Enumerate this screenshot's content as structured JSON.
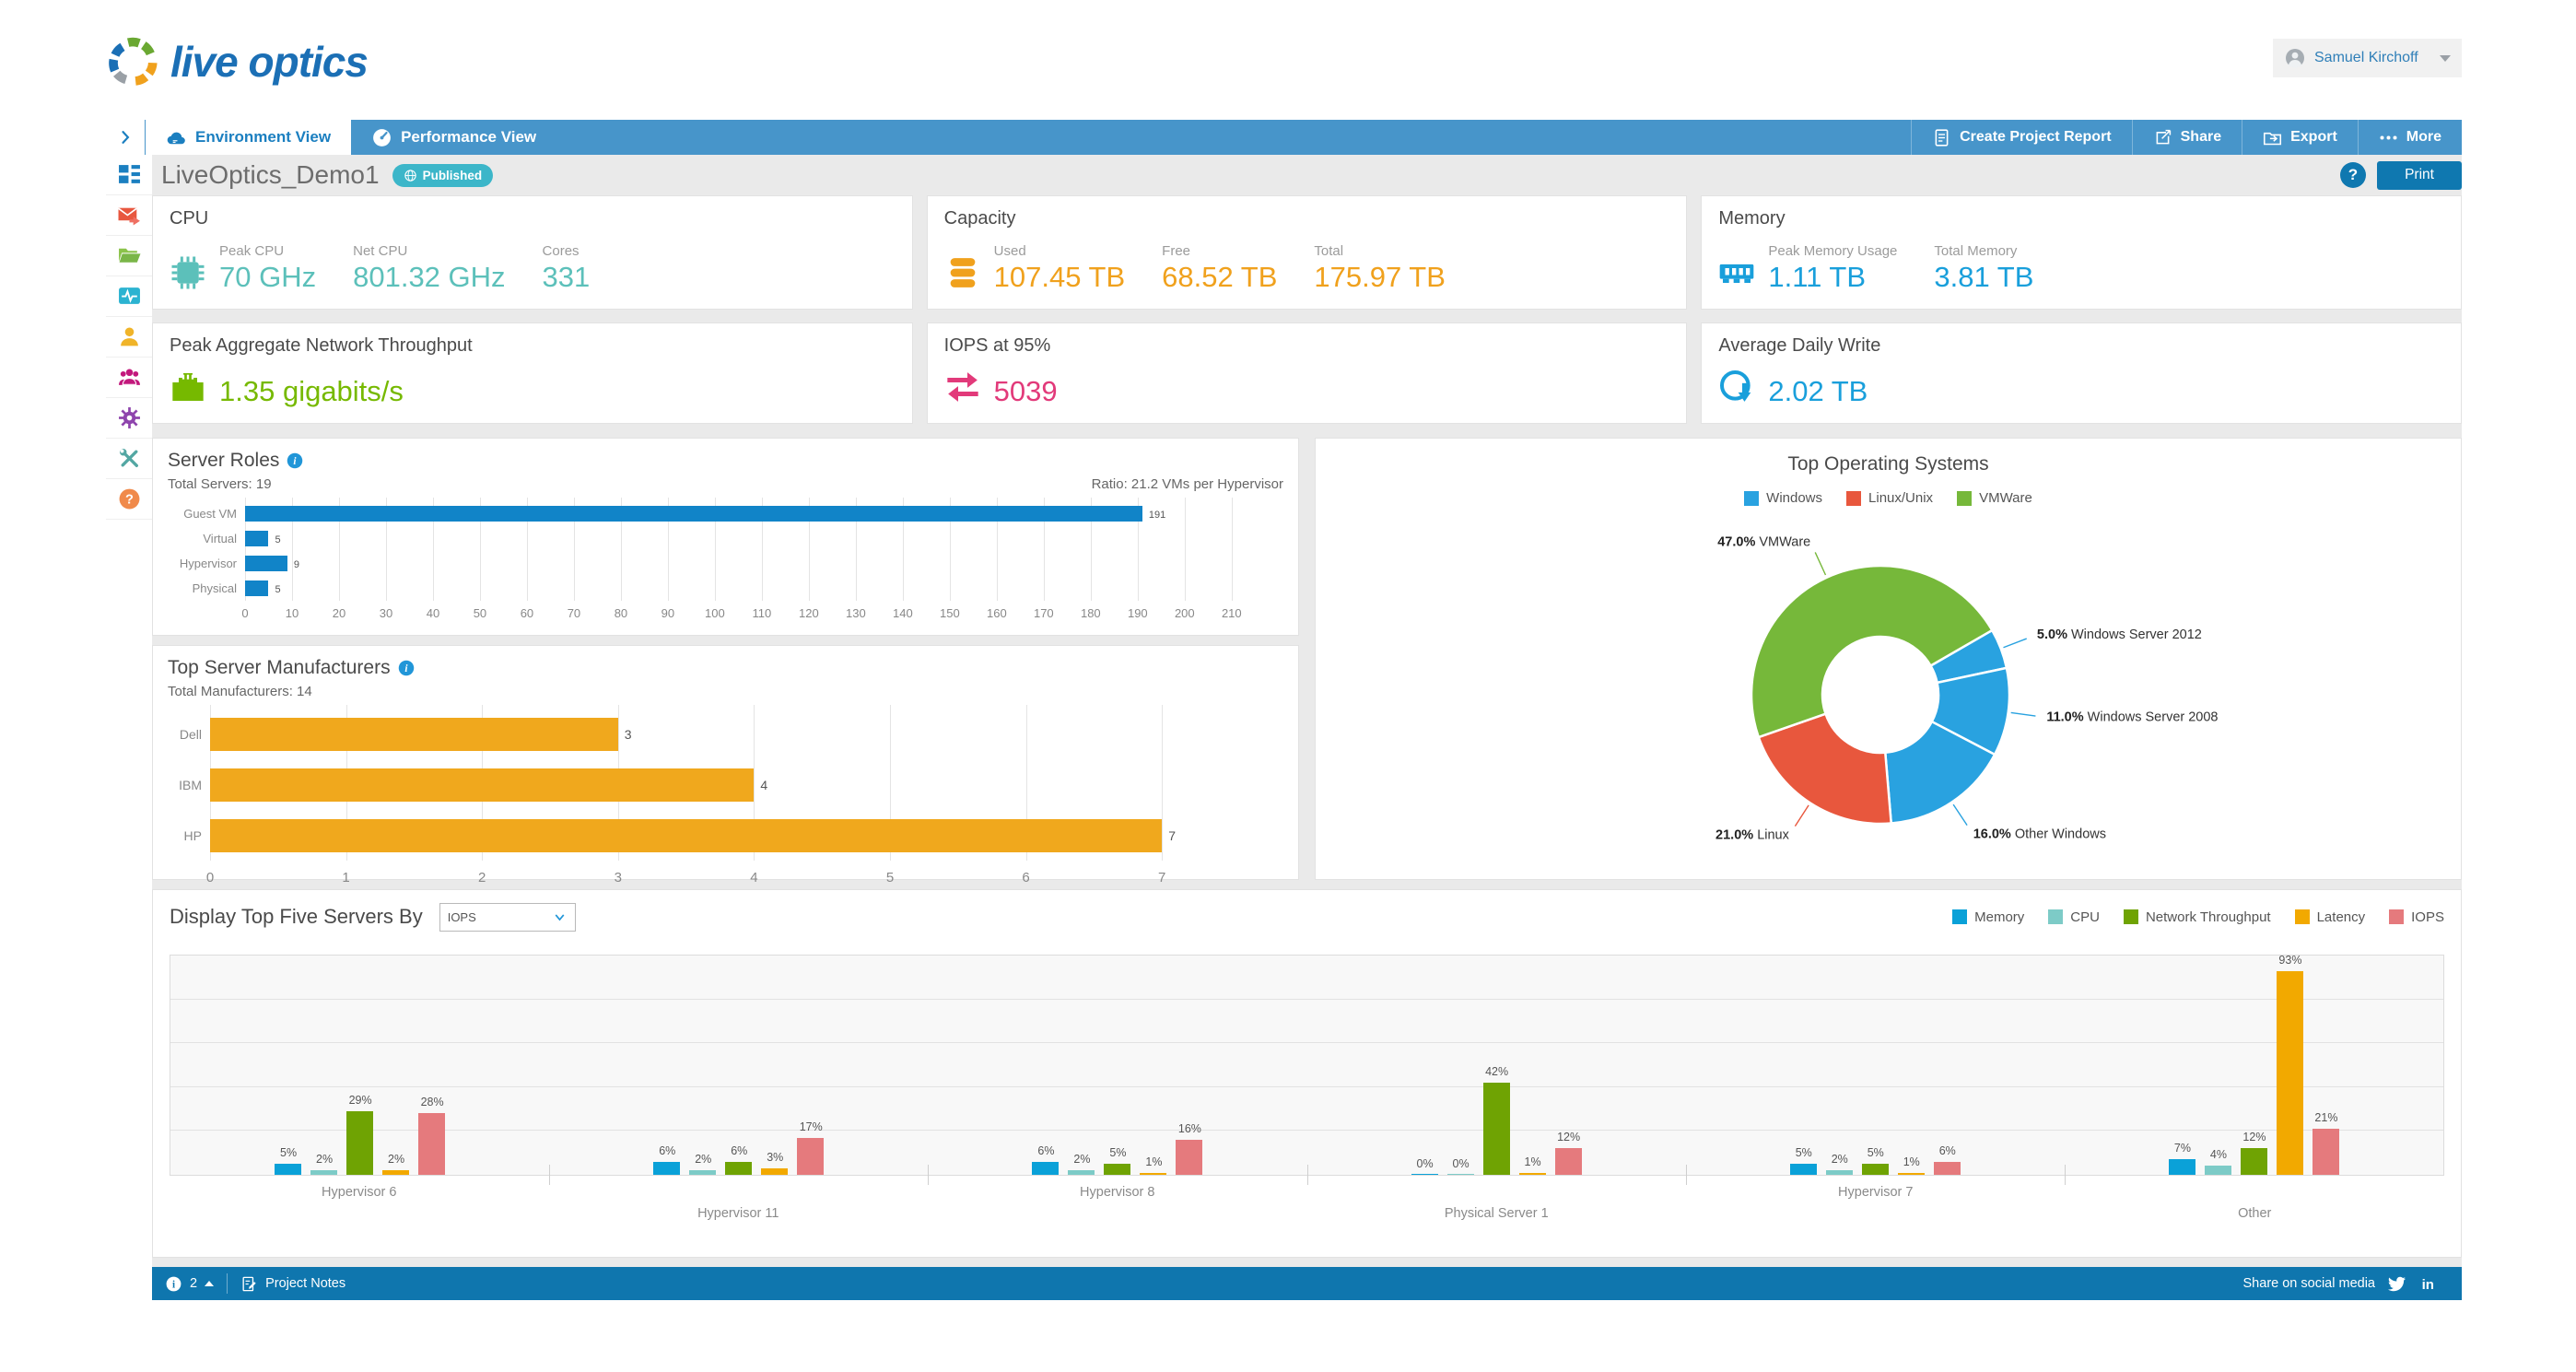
{
  "header": {
    "logo": "live optics",
    "user": "Samuel Kirchoff"
  },
  "tabs": [
    {
      "label": "Environment View",
      "icon": "cloud",
      "active": true
    },
    {
      "label": "Performance View",
      "icon": "gauge",
      "active": false
    }
  ],
  "toolbar": [
    {
      "label": "Create Project Report",
      "icon": "report"
    },
    {
      "label": "Share",
      "icon": "share"
    },
    {
      "label": "Export",
      "icon": "export"
    },
    {
      "label": "More",
      "icon": "more"
    }
  ],
  "title_row": {
    "title": "LiveOptics_Demo1",
    "badge": "Published",
    "help": "?",
    "print": "Print"
  },
  "sidebar": [
    "dashboard",
    "mail",
    "folder",
    "monitor",
    "user",
    "team",
    "settings",
    "tools",
    "helpq"
  ],
  "kpis": [
    {
      "title": "CPU",
      "icon": "chip",
      "color": "#5cc0ba",
      "metrics": [
        [
          "Peak CPU",
          "70 GHz"
        ],
        [
          "Net CPU",
          "801.32 GHz"
        ],
        [
          "Cores",
          "331"
        ]
      ]
    },
    {
      "title": "Capacity",
      "icon": "db",
      "color": "#f0a11d",
      "metrics": [
        [
          "Used",
          "107.45 TB"
        ],
        [
          "Free",
          "68.52 TB"
        ],
        [
          "Total",
          "175.97 TB"
        ]
      ]
    },
    {
      "title": "Memory",
      "icon": "memory",
      "color": "#199fdb",
      "metrics": [
        [
          "Peak Memory Usage",
          "1.11 TB"
        ],
        [
          "Total Memory",
          "3.81 TB"
        ]
      ]
    },
    {
      "title": "Peak Aggregate Network Throughput",
      "icon": "ethernet",
      "color": "#76b900",
      "metrics": [
        [
          "",
          "1.35 gigabits/s"
        ]
      ]
    },
    {
      "title": "IOPS at 95%",
      "icon": "syncarrows",
      "color": "#e23a7a",
      "metrics": [
        [
          "",
          "5039"
        ]
      ]
    },
    {
      "title": "Average Daily Write",
      "icon": "diskwrite",
      "color": "#199fdb",
      "metrics": [
        [
          "",
          "2.02 TB"
        ]
      ]
    }
  ],
  "chart_data": [
    {
      "id": "server_roles",
      "type": "bar",
      "orientation": "horizontal",
      "title": "Server Roles",
      "subtitle": "Total Servers: 19",
      "annotation": "Ratio: 21.2 VMs per Hypervisor",
      "categories": [
        "Guest VM",
        "Virtual",
        "Hypervisor",
        "Physical"
      ],
      "values": [
        191,
        5,
        9,
        5
      ],
      "xlim": [
        0,
        210
      ],
      "tick_step": 10,
      "axis_max": 212,
      "bar_color": "#1184c8",
      "grid": true
    },
    {
      "id": "top_manufacturers",
      "type": "bar",
      "orientation": "horizontal",
      "title": "Top Server Manufacturers",
      "subtitle": "Total Manufacturers: 14",
      "categories": [
        "Dell",
        "IBM",
        "HP"
      ],
      "values": [
        3,
        4,
        7
      ],
      "xlim": [
        0,
        7
      ],
      "tick_step": 1,
      "axis_max": 7.5,
      "bar_color": "#f0a81d",
      "grid": true
    },
    {
      "id": "top_operating_systems",
      "type": "pie",
      "title": "Top Operating Systems",
      "legend": [
        {
          "label": "Windows",
          "color": "#29a2e0"
        },
        {
          "label": "Linux/Unix",
          "color": "#e8573d"
        },
        {
          "label": "VMWare",
          "color": "#76b83a"
        }
      ],
      "start_angle_deg": 60,
      "slices": [
        {
          "label": "Windows Server 2012",
          "pct": 5.0,
          "color": "#29a2e0"
        },
        {
          "label": "Windows Server 2008",
          "pct": 11.0,
          "color": "#29a2e0"
        },
        {
          "label": "Other Windows",
          "pct": 16.0,
          "color": "#29a2e0"
        },
        {
          "label": "Linux",
          "pct": 21.0,
          "color": "#e8573d"
        },
        {
          "label": "VMWare",
          "pct": 47.0,
          "color": "#76b83a"
        }
      ]
    },
    {
      "id": "top_five_servers",
      "type": "bar",
      "grouped": true,
      "control_label": "Display Top Five Servers By",
      "control_value": "IOPS",
      "series": [
        {
          "name": "Memory",
          "color": "#0aa1d8"
        },
        {
          "name": "CPU",
          "color": "#7dcbc7"
        },
        {
          "name": "Network Throughput",
          "color": "#6fa303"
        },
        {
          "name": "Latency",
          "color": "#f2a900"
        },
        {
          "name": "IOPS",
          "color": "#e57a7d"
        }
      ],
      "categories": [
        "Hypervisor 6",
        "Hypervisor 11",
        "Hypervisor 8",
        "Physical Server 1",
        "Hypervisor 7",
        "Other"
      ],
      "values_pct": [
        [
          5,
          2,
          29,
          2,
          28
        ],
        [
          6,
          2,
          6,
          3,
          17
        ],
        [
          6,
          2,
          5,
          1,
          16
        ],
        [
          0,
          0,
          42,
          1,
          12
        ],
        [
          5,
          2,
          5,
          1,
          6
        ],
        [
          7,
          4,
          12,
          93,
          21
        ]
      ],
      "ylim": [
        0,
        100
      ],
      "grid_step_pct": 20
    }
  ],
  "footer": {
    "count": "2",
    "notes": "Project Notes",
    "share": "Share on social media"
  }
}
